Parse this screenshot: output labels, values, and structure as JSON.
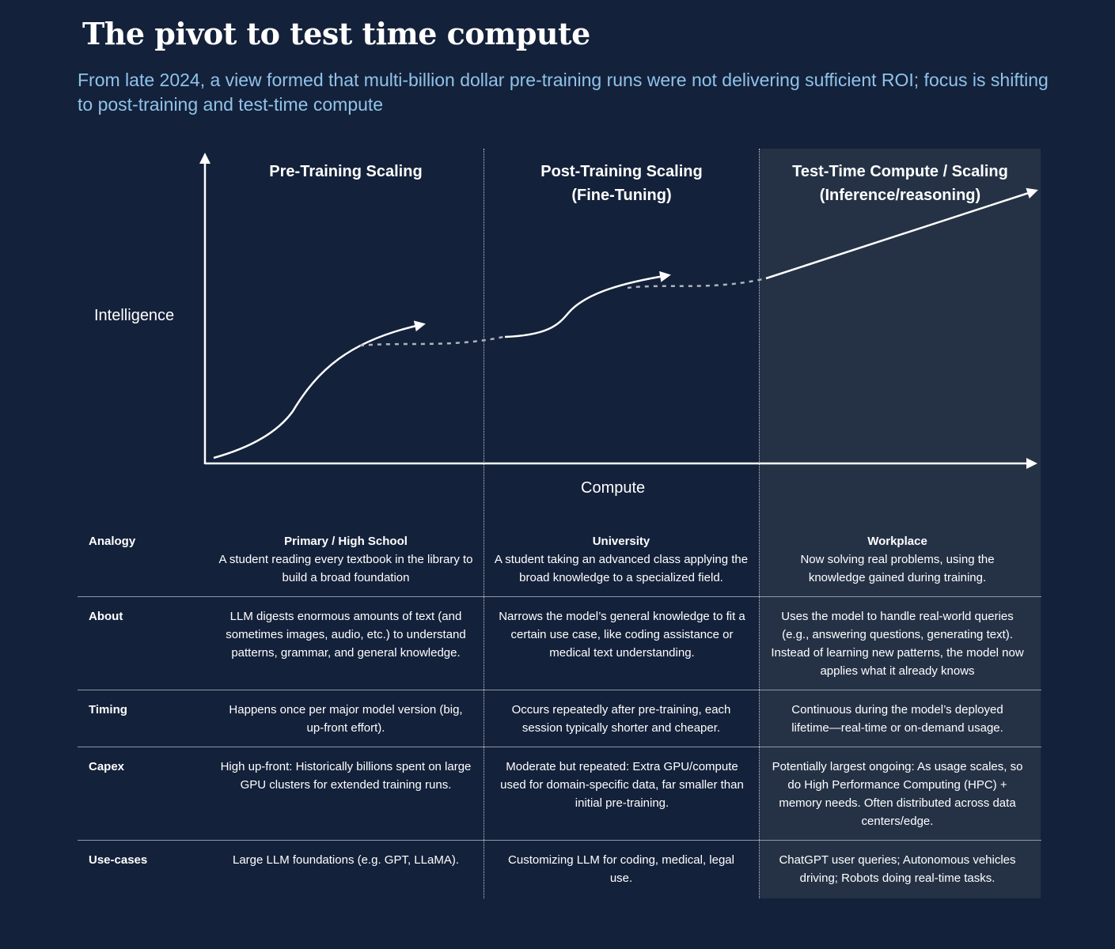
{
  "title": "The pivot to test time compute",
  "subtitle": "From late 2024, a view formed that multi-billion dollar pre-training runs were not delivering sufficient ROI; focus is shifting to post-training and test-time compute",
  "diagram": {
    "y_axis_label": "Intelligence",
    "x_axis_label": "Compute",
    "phases": [
      {
        "title_line1": "Pre-Training Scaling",
        "title_line2": ""
      },
      {
        "title_line1": "Post-Training Scaling",
        "title_line2": "(Fine-Tuning)"
      },
      {
        "title_line1": "Test-Time Compute / Scaling",
        "title_line2": "(Inference/reasoning)"
      }
    ]
  },
  "table": {
    "analogy": {
      "label": "Analogy",
      "cells": [
        {
          "heading": "Primary / High School",
          "text": "A student reading every textbook in the library to build a broad foundation"
        },
        {
          "heading": "University",
          "text": "A student taking an advanced class  applying the broad knowledge to a specialized field."
        },
        {
          "heading": "Workplace",
          "text": "Now solving real problems, using the knowledge gained during training."
        }
      ]
    },
    "about": {
      "label": "About",
      "cells": [
        "LLM digests enormous amounts of text (and sometimes images, audio, etc.) to understand patterns, grammar, and general knowledge.",
        "Narrows the model’s general knowledge to fit a certain use case, like coding assistance or medical text understanding.",
        "Uses the model to handle real-world queries (e.g., answering questions, generating text). Instead of learning new patterns, the model now applies what it already knows"
      ]
    },
    "timing": {
      "label": "Timing",
      "cells": [
        "Happens once per major model version (big, up-front effort).",
        "Occurs repeatedly after pre-training, each session typically shorter and cheaper.",
        "Continuous during the model’s deployed lifetime—real-time or on-demand usage."
      ]
    },
    "capex": {
      "label": "Capex",
      "cells": [
        "High up-front: Historically billions spent on large GPU clusters for extended training runs.",
        "Moderate but repeated: Extra GPU/compute used for domain-specific data, far smaller than initial pre-training.",
        "Potentially largest ongoing: As usage scales, so do High Performance Computing (HPC) + memory needs. Often distributed across data centers/edge."
      ]
    },
    "use_cases": {
      "label": "Use-cases",
      "cells": [
        "Large LLM foundations (e.g. GPT, LLaMA).",
        "Customizing LLM for coding, medical, legal use.",
        "ChatGPT user queries; Autonomous vehicles driving; Robots doing real-time tasks."
      ]
    }
  }
}
